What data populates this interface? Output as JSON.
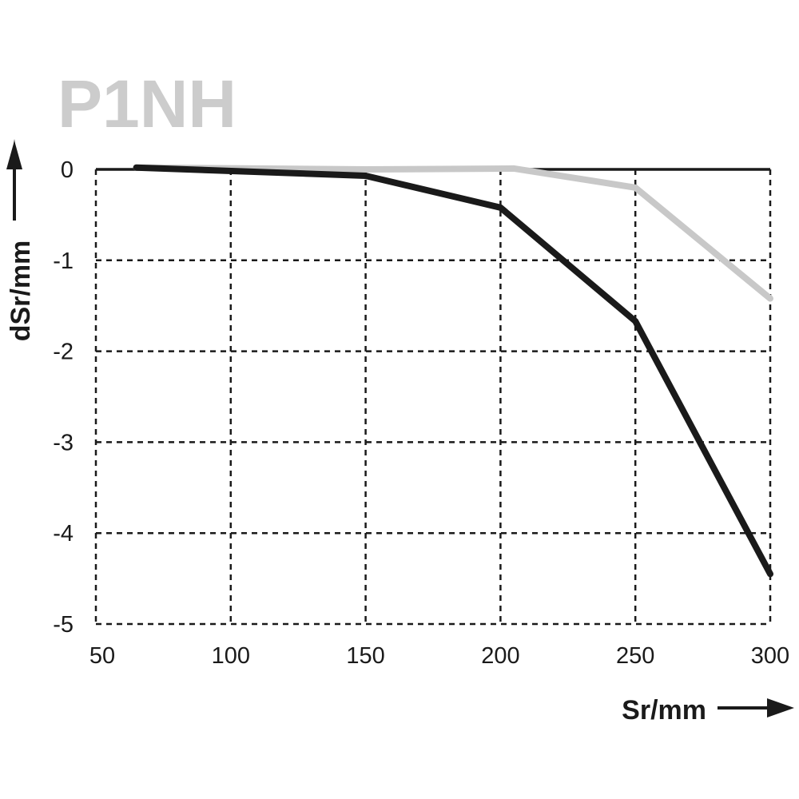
{
  "chart_data": {
    "type": "line",
    "title": "P1NH",
    "xlabel": "Sr/mm",
    "ylabel": "dSr/mm",
    "xlim": [
      50,
      300
    ],
    "ylim": [
      -5,
      0
    ],
    "x_ticks": [
      "50",
      "100",
      "150",
      "200",
      "250",
      "300"
    ],
    "y_ticks": [
      "0",
      "-1",
      "-2",
      "-3",
      "-4",
      "-5"
    ],
    "grid": true,
    "series": [
      {
        "color": "#c8c8c8",
        "x": [
          65,
          150,
          205,
          250,
          300
        ],
        "y": [
          0.02,
          0.0,
          0.01,
          -0.2,
          -1.42
        ]
      },
      {
        "color": "#1a1a1a",
        "x": [
          65,
          150,
          200,
          250,
          300
        ],
        "y": [
          0.02,
          -0.07,
          -0.42,
          -1.67,
          -4.45
        ]
      }
    ]
  }
}
